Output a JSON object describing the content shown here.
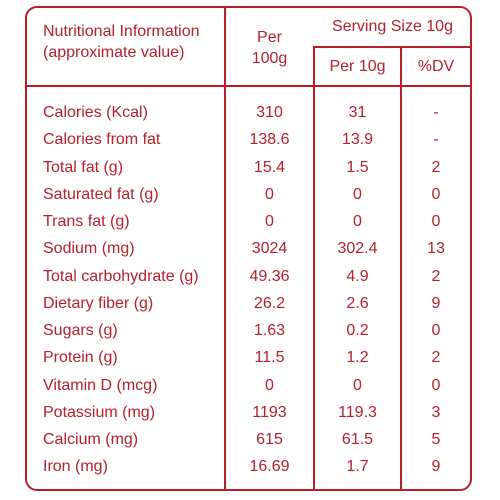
{
  "header": {
    "title_line1": "Nutritional Information",
    "title_line2": "(approximate value)",
    "per_line1": "Per",
    "per_line2": "100g",
    "serving_size": "Serving Size 10g",
    "per_10g": "Per 10g",
    "dv": "%DV"
  },
  "rows": [
    {
      "label": "Calories (Kcal)",
      "per100": "310",
      "per10": "31",
      "dv": "-"
    },
    {
      "label": "Calories from fat",
      "per100": "138.6",
      "per10": "13.9",
      "dv": "-"
    },
    {
      "label": "Total fat (g)",
      "per100": "15.4",
      "per10": "1.5",
      "dv": "2"
    },
    {
      "label": "Saturated fat (g)",
      "per100": "0",
      "per10": "0",
      "dv": "0"
    },
    {
      "label": "Trans fat (g)",
      "per100": "0",
      "per10": "0",
      "dv": "0"
    },
    {
      "label": "Sodium (mg)",
      "per100": "3024",
      "per10": "302.4",
      "dv": "13"
    },
    {
      "label": "Total carbohydrate (g)",
      "per100": "49.36",
      "per10": "4.9",
      "dv": "2"
    },
    {
      "label": "Dietary fiber (g)",
      "per100": "26.2",
      "per10": "2.6",
      "dv": "9"
    },
    {
      "label": "Sugars (g)",
      "per100": "1.63",
      "per10": "0.2",
      "dv": "0"
    },
    {
      "label": "Protein (g)",
      "per100": "11.5",
      "per10": "1.2",
      "dv": "2"
    },
    {
      "label": "Vitamin D (mcg)",
      "per100": "0",
      "per10": "0",
      "dv": "0"
    },
    {
      "label": "Potassium (mg)",
      "per100": "1193",
      "per10": "119.3",
      "dv": "3"
    },
    {
      "label": "Calcium (mg)",
      "per100": "615",
      "per10": "61.5",
      "dv": "5"
    },
    {
      "label": "Iron (mg)",
      "per100": "16.69",
      "per10": "1.7",
      "dv": "9"
    }
  ],
  "colors": {
    "accent": "#b3212a",
    "background": "#ffffff"
  }
}
